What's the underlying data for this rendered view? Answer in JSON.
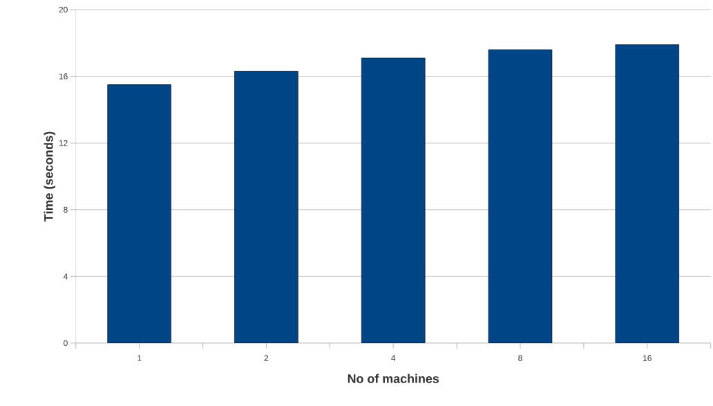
{
  "chart_data": {
    "type": "bar",
    "xlabel": "No of machines",
    "ylabel": "Time (seconds)",
    "categories": [
      "1",
      "2",
      "4",
      "8",
      "16"
    ],
    "values": [
      15.5,
      16.3,
      17.1,
      17.6,
      17.9
    ],
    "color": "#004586",
    "ylim": [
      0,
      20
    ],
    "yticks": [
      0,
      4,
      8,
      12,
      16,
      20
    ],
    "grid": "y"
  }
}
